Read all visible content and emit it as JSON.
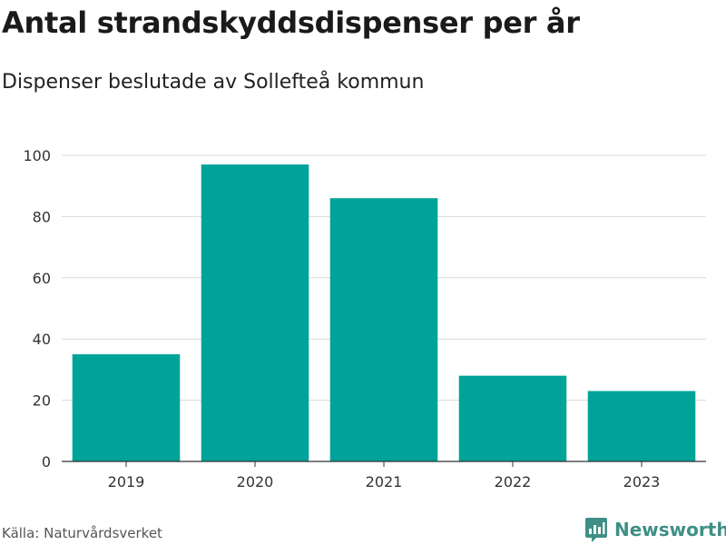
{
  "title": "Antal strandskyddsdispenser per år",
  "subtitle": "Dispenser beslutade av Sollefteå kommun",
  "source": "Källa: Naturvårdsverket",
  "brand": "Newsworthy",
  "colors": {
    "bar": "#00a398",
    "grid": "#d9d9d9",
    "axis": "#333333",
    "brand": "#3f8f86"
  },
  "chart_data": {
    "type": "bar",
    "title": "Antal strandskyddsdispenser per år",
    "subtitle": "Dispenser beslutade av Sollefteå kommun",
    "categories": [
      "2019",
      "2020",
      "2021",
      "2022",
      "2023"
    ],
    "values": [
      35,
      97,
      86,
      28,
      23
    ],
    "xlabel": "",
    "ylabel": "",
    "ylim": [
      0,
      100
    ],
    "yticks": [
      0,
      20,
      40,
      60,
      80,
      100
    ],
    "grid": true
  }
}
